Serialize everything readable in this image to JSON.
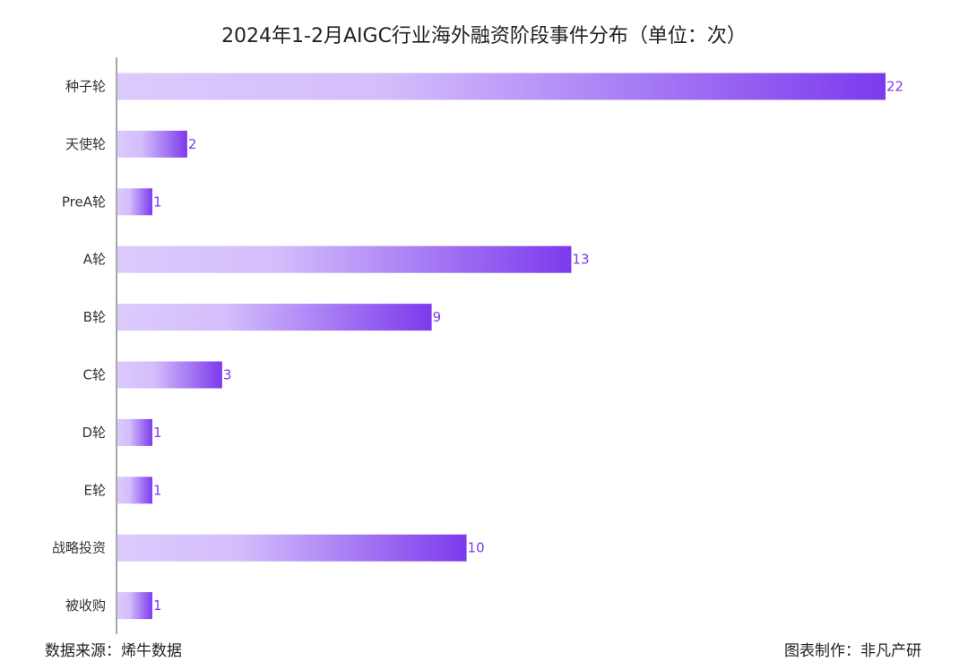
{
  "chart_data": {
    "type": "bar",
    "orientation": "horizontal",
    "title": "2024年1-2月AIGC行业海外融资阶段事件分布（单位：次）",
    "categories": [
      "种子轮",
      "天使轮",
      "PreA轮",
      "A轮",
      "B轮",
      "C轮",
      "D轮",
      "E轮",
      "战略投资",
      "被收购"
    ],
    "values": [
      22,
      2,
      1,
      13,
      9,
      3,
      1,
      1,
      10,
      1
    ],
    "xlim": [
      0,
      22
    ],
    "grid": false,
    "legend": "none",
    "bar_gradient": [
      "#dccafc",
      "#7c3aed"
    ]
  },
  "footer": {
    "source": "数据来源：烯牛数据",
    "credit": "图表制作：非凡产研"
  }
}
